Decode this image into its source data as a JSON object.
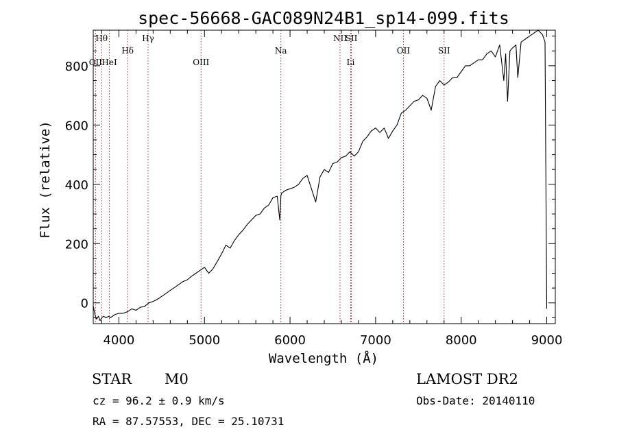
{
  "chart_data": {
    "type": "line",
    "title": "spec-56668-GAC089N24B1_sp14-099.fits",
    "xlabel": "Wavelength (Å)",
    "ylabel": "Flux (relative)",
    "xlim": [
      3700,
      9100
    ],
    "ylim": [
      -70,
      920
    ],
    "xticks": [
      4000,
      5000,
      6000,
      7000,
      8000,
      9000
    ],
    "yticks": [
      0,
      200,
      400,
      600,
      800
    ],
    "grid": false,
    "line_color": "#000000",
    "marker_color": "#b22222",
    "series": [
      {
        "x": [
          3700,
          3720,
          3740,
          3760,
          3780,
          3800,
          3820,
          3850,
          3880,
          3900,
          3950,
          4000,
          4050,
          4100,
          4150,
          4200,
          4250,
          4300,
          4350,
          4400,
          4450,
          4500,
          4550,
          4600,
          4650,
          4700,
          4750,
          4800,
          4850,
          4900,
          4950,
          5000,
          5050,
          5100,
          5150,
          5200,
          5250,
          5300,
          5350,
          5400,
          5450,
          5500,
          5550,
          5600,
          5650,
          5700,
          5750,
          5800,
          5850,
          5880,
          5893,
          5900,
          5950,
          6000,
          6050,
          6100,
          6150,
          6200,
          6250,
          6300,
          6350,
          6400,
          6450,
          6500,
          6550,
          6600,
          6650,
          6700,
          6750,
          6800,
          6850,
          6900,
          6950,
          7000,
          7050,
          7100,
          7150,
          7200,
          7250,
          7300,
          7350,
          7400,
          7450,
          7500,
          7550,
          7600,
          7650,
          7700,
          7750,
          7800,
          7850,
          7900,
          7950,
          8000,
          8050,
          8100,
          8150,
          8200,
          8250,
          8300,
          8350,
          8400,
          8450,
          8498,
          8520,
          8542,
          8570,
          8600,
          8640,
          8662,
          8700,
          8750,
          8800,
          8850,
          8900,
          8950,
          8980,
          9000
        ],
        "y": [
          -10,
          -40,
          -55,
          -45,
          -60,
          -50,
          -45,
          -50,
          -45,
          -50,
          -40,
          -35,
          -35,
          -30,
          -20,
          -25,
          -15,
          -12,
          0,
          5,
          12,
          22,
          32,
          42,
          52,
          62,
          72,
          78,
          90,
          100,
          110,
          120,
          100,
          115,
          140,
          165,
          195,
          185,
          210,
          230,
          245,
          265,
          280,
          295,
          300,
          320,
          330,
          355,
          360,
          280,
          360,
          370,
          380,
          385,
          390,
          400,
          420,
          430,
          385,
          340,
          425,
          450,
          440,
          470,
          475,
          490,
          495,
          510,
          495,
          510,
          545,
          560,
          580,
          590,
          575,
          590,
          555,
          580,
          600,
          640,
          650,
          665,
          680,
          685,
          700,
          690,
          650,
          730,
          750,
          735,
          745,
          760,
          760,
          780,
          800,
          800,
          810,
          820,
          820,
          840,
          850,
          830,
          870,
          750,
          840,
          680,
          850,
          860,
          870,
          760,
          880,
          890,
          900,
          910,
          920,
          905,
          880,
          -20
        ]
      }
    ],
    "line_markers": [
      {
        "label": "Hθ",
        "x": 3798,
        "row": 0
      },
      {
        "label": "OII",
        "x": 3727,
        "row": 2
      },
      {
        "label": "HeI",
        "x": 3889,
        "row": 2
      },
      {
        "label": "Hδ",
        "x": 4102,
        "row": 1
      },
      {
        "label": "Hγ",
        "x": 4341,
        "row": 0
      },
      {
        "label": "OIII",
        "x": 4960,
        "row": 2
      },
      {
        "label": "Na",
        "x": 5893,
        "row": 1
      },
      {
        "label": "NII",
        "x": 6584,
        "row": 0
      },
      {
        "label": "SII",
        "x": 6717,
        "row": 0
      },
      {
        "label": "Li",
        "x": 6708,
        "row": 2
      },
      {
        "label": "OII",
        "x": 7325,
        "row": 1
      },
      {
        "label": "SII",
        "x": 7800,
        "row": 1
      }
    ]
  },
  "info": {
    "class_label": "STAR",
    "subclass": "M0",
    "cz": "cz = 96.2 ± 0.9 km/s",
    "radec": "RA =  87.57553, DEC =  25.10731",
    "survey": "LAMOST DR2",
    "obs_date": "Obs-Date: 20140110"
  }
}
